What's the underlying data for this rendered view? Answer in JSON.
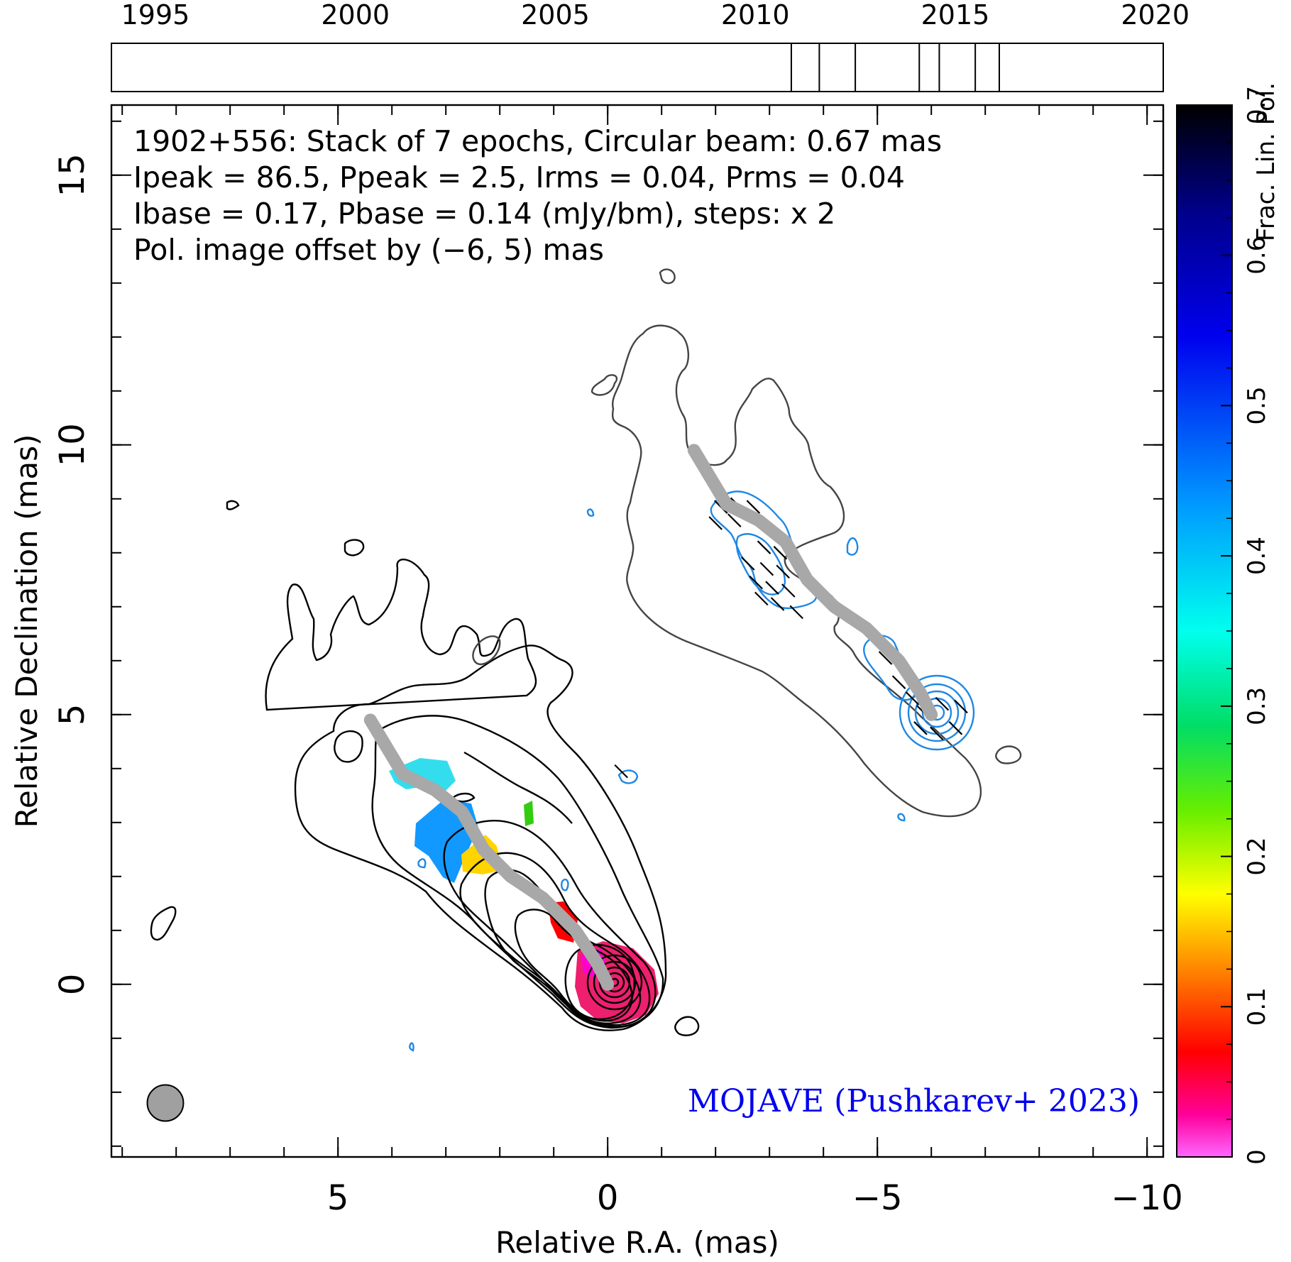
{
  "chart_data": {
    "type": "contour",
    "source": "1902+556",
    "annotation_lines": [
      "1902+556: Stack of 7 epochs, Circular beam: 0.67 mas",
      "Ipeak = 86.5, Ppeak = 2.5, Irms = 0.04, Prms = 0.04",
      "Ibase = 0.17, Pbase = 0.14 (mJy/bm), steps: x 2"
    ],
    "offset_note": "Pol. image offset by (−6, 5) mas",
    "credit": "MOJAVE (Pushkarev+ 2023)",
    "xlabel": "Relative R.A. (mas)",
    "ylabel": "Relative Declination (mas)",
    "colorbar_label": "Frac. Lin. Pol.",
    "xlim": [
      9.2,
      -10.3
    ],
    "ylim": [
      -3.2,
      16.3
    ],
    "x_ticks": [
      5,
      0,
      -5,
      -10
    ],
    "x_tick_labels": [
      "5",
      "0",
      "−5",
      "−10"
    ],
    "y_ticks": [
      0,
      5,
      10,
      15
    ],
    "y_tick_labels": [
      "0",
      "5",
      "10",
      "15"
    ],
    "colorbar_range": [
      0,
      0.7
    ],
    "colorbar_ticks": [
      0,
      0.1,
      0.2,
      0.3,
      0.4,
      0.5,
      0.6,
      0.7
    ],
    "colorbar_tick_labels": [
      "0",
      "0.1",
      "0.2",
      "0.3",
      "0.4",
      "0.5",
      "0.6",
      "0.7"
    ],
    "timeline": {
      "range": [
        1993.9,
        2020.2
      ],
      "ticks": [
        1995,
        2000,
        2005,
        2010,
        2015,
        2020
      ],
      "tick_labels": [
        "1995",
        "2000",
        "2005",
        "2010",
        "2015",
        "2020"
      ],
      "epochs": [
        2010.9,
        2011.6,
        2012.5,
        2014.1,
        2014.6,
        2015.5,
        2016.1
      ]
    },
    "ridge_line": [
      [
        4.4,
        4.9
      ],
      [
        4.1,
        4.4
      ],
      [
        3.8,
        3.9
      ],
      [
        3.2,
        3.6
      ],
      [
        2.7,
        3.2
      ],
      [
        2.3,
        2.5
      ],
      [
        1.8,
        2.0
      ],
      [
        1.2,
        1.6
      ],
      [
        0.6,
        1.0
      ],
      [
        0.2,
        0.4
      ],
      [
        0.0,
        0.0
      ]
    ],
    "beam_center": [
      8.2,
      -2.2
    ],
    "beam_diameter_mas": 0.67,
    "contour_levels_mJy": [
      0.17,
      0.34,
      0.68,
      1.36,
      2.72,
      5.44,
      10.88,
      21.76,
      43.52,
      87.04
    ],
    "colors": {
      "contour": "#000000",
      "contour_offset": "#444444",
      "pol_contour": "#1e88e5",
      "ridge": "#a8a8a8",
      "credit": "#0000ee",
      "offset_note": "#1e88e5",
      "beam_fill": "#a0a0a0"
    }
  }
}
